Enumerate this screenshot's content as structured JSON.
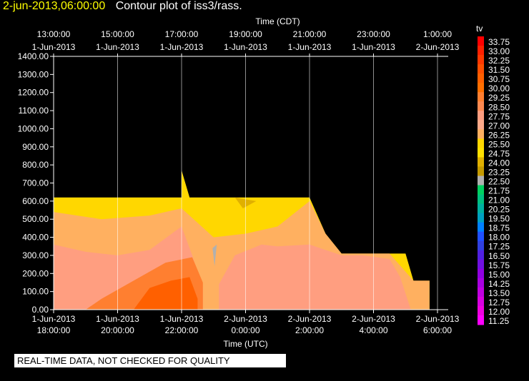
{
  "header": {
    "timestamp": "2-jun-2013,06:00:00",
    "title": "Contour plot of iss3/rass."
  },
  "footer": {
    "notice": "REAL-TIME DATA, NOT CHECKED FOR QUALITY"
  },
  "colors": {
    "background": "#000000",
    "timestamp": "#ffff00",
    "grid": "#ffffff"
  },
  "chart_data": {
    "type": "heatmap",
    "title": "Contour plot of iss3/rass.",
    "top_axis_label": "Time (CDT)",
    "bottom_axis_label": "Time (UTC)",
    "top_ticks": [
      [
        "13:00:00",
        "1-Jun-2013"
      ],
      [
        "15:00:00",
        "1-Jun-2013"
      ],
      [
        "17:00:00",
        "1-Jun-2013"
      ],
      [
        "19:00:00",
        "1-Jun-2013"
      ],
      [
        "21:00:00",
        "1-Jun-2013"
      ],
      [
        "23:00:00",
        "1-Jun-2013"
      ],
      [
        "1:00:00",
        "2-Jun-2013"
      ]
    ],
    "bottom_ticks": [
      [
        "1-Jun-2013",
        "18:00:00"
      ],
      [
        "1-Jun-2013",
        "20:00:00"
      ],
      [
        "1-Jun-2013",
        "22:00:00"
      ],
      [
        "2-Jun-2013",
        "0:00:00"
      ],
      [
        "2-Jun-2013",
        "2:00:00"
      ],
      [
        "2-Jun-2013",
        "4:00:00"
      ],
      [
        "2-Jun-2013",
        "6:00:00"
      ]
    ],
    "xlim": [
      "2013-06-01 18:00 UTC",
      "2013-06-02 06:00 UTC"
    ],
    "y_ticks": [
      "0.00",
      "100.00",
      "200.00",
      "300.00",
      "400.00",
      "500.00",
      "600.00",
      "700.00",
      "800.00",
      "900.00",
      "1000.00",
      "1100.00",
      "1200.00",
      "1300.00",
      "1400.00"
    ],
    "ylim": [
      0,
      1400
    ],
    "grid": true,
    "colorbar": {
      "label": "tv",
      "levels": [
        "33.75",
        "33.00",
        "32.25",
        "31.50",
        "30.75",
        "30.00",
        "29.25",
        "28.50",
        "27.75",
        "27.00",
        "26.25",
        "25.50",
        "24.75",
        "24.00",
        "23.25",
        "22.50",
        "21.75",
        "21.00",
        "20.25",
        "19.50",
        "18.75",
        "18.00",
        "17.25",
        "16.50",
        "15.75",
        "15.00",
        "14.25",
        "13.50",
        "12.75",
        "12.00",
        "11.25"
      ],
      "colors": [
        "#ff0000",
        "#ff2000",
        "#ff3800",
        "#ff4f00",
        "#ff6000",
        "#ff6f00",
        "#ff7f30",
        "#ff8a50",
        "#ff9e80",
        "#ffaa8a",
        "#ffb060",
        "#ffd700",
        "#ffe000",
        "#e0b000",
        "#c49a00",
        "#b0b0b0",
        "#00d060",
        "#00c080",
        "#00b0a0",
        "#00a0c0",
        "#0080ff",
        "#2050ff",
        "#3040e0",
        "#5020e0",
        "#7010e0",
        "#9000e0",
        "#a800e0",
        "#c000e0",
        "#d800e0",
        "#ee00e0",
        "#ff00ff"
      ]
    },
    "regions": [
      {
        "name": "data-envelope",
        "color": "#ffd700",
        "points": [
          [
            "18:00",
            0
          ],
          [
            "18:00",
            620
          ],
          [
            "22:00",
            620
          ],
          [
            "22:00",
            770
          ],
          [
            "22:15",
            620
          ],
          [
            "2:00",
            620
          ],
          [
            "2:30",
            420
          ],
          [
            "3:00",
            310
          ],
          [
            "5:00",
            310
          ],
          [
            "5:15",
            160
          ],
          [
            "5:45",
            160
          ],
          [
            "5:45",
            0
          ]
        ]
      },
      {
        "name": "upper-band",
        "color": "#ffb060",
        "points": [
          [
            "18:00",
            0
          ],
          [
            "18:00",
            540
          ],
          [
            "19:30",
            500
          ],
          [
            "21:00",
            520
          ],
          [
            "22:00",
            560
          ],
          [
            "22:30",
            480
          ],
          [
            "23:00",
            400
          ],
          [
            "0:00",
            420
          ],
          [
            "1:00",
            460
          ],
          [
            "2:00",
            600
          ],
          [
            "2:30",
            420
          ],
          [
            "3:00",
            310
          ],
          [
            "4:30",
            310
          ],
          [
            "5:15",
            160
          ],
          [
            "5:45",
            160
          ],
          [
            "5:45",
            0
          ]
        ]
      },
      {
        "name": "pink-zone",
        "color": "#ff9e80",
        "points": [
          [
            "18:00",
            0
          ],
          [
            "18:00",
            360
          ],
          [
            "19:00",
            320
          ],
          [
            "20:00",
            300
          ],
          [
            "21:00",
            330
          ],
          [
            "22:00",
            460
          ],
          [
            "22:20",
            300
          ],
          [
            "22:40",
            120
          ],
          [
            "22:40",
            0
          ]
        ]
      },
      {
        "name": "pink-zone-east",
        "color": "#ff9e80",
        "points": [
          [
            "23:10",
            0
          ],
          [
            "23:10",
            140
          ],
          [
            "23:40",
            300
          ],
          [
            "0:30",
            360
          ],
          [
            "1:00",
            350
          ],
          [
            "2:00",
            360
          ],
          [
            "3:00",
            300
          ],
          [
            "3:40",
            300
          ],
          [
            "4:30",
            280
          ],
          [
            "4:50",
            180
          ],
          [
            "5:10",
            0
          ]
        ]
      },
      {
        "name": "orange-core",
        "color": "#ff7f30",
        "points": [
          [
            "19:00",
            0
          ],
          [
            "19:30",
            60
          ],
          [
            "20:30",
            160
          ],
          [
            "21:30",
            260
          ],
          [
            "22:20",
            290
          ],
          [
            "22:40",
            150
          ],
          [
            "22:40",
            0
          ]
        ]
      },
      {
        "name": "hot-core",
        "color": "#ff6000",
        "points": [
          [
            "20:30",
            0
          ],
          [
            "21:00",
            120
          ],
          [
            "21:40",
            160
          ],
          [
            "22:15",
            180
          ],
          [
            "22:30",
            60
          ],
          [
            "22:30",
            0
          ]
        ]
      },
      {
        "name": "grey-streak",
        "color": "#b0b0b0",
        "points": [
          [
            "22:58",
            340
          ],
          [
            "23:02",
            240
          ],
          [
            "23:06",
            360
          ]
        ]
      },
      {
        "name": "khaki-top",
        "color": "#e0b000",
        "points": [
          [
            "23:40",
            620
          ],
          [
            "23:55",
            560
          ],
          [
            "0:20",
            600
          ]
        ]
      }
    ]
  }
}
